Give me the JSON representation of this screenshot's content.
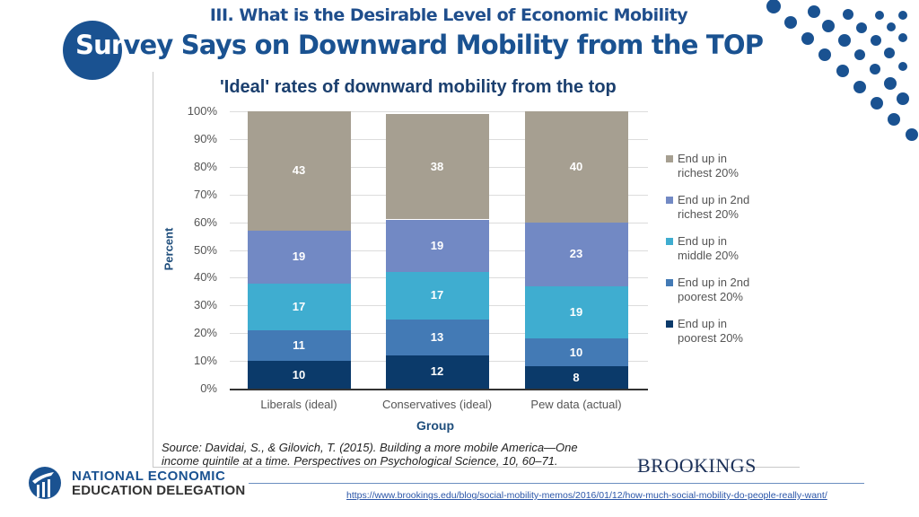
{
  "header": {
    "section_title": "III. What is the Desirable Level of Economic Mobility",
    "main_title_highlight": "Sur",
    "main_title_rest": "vey Says on Downward Mobility from the TOP"
  },
  "chart_data": {
    "type": "bar",
    "stacked": true,
    "title": "'Ideal' rates of downward mobility from the top",
    "xlabel": "Group",
    "ylabel": "Percent",
    "ylim": [
      0,
      100
    ],
    "yticks": [
      "0%",
      "10%",
      "20%",
      "30%",
      "40%",
      "50%",
      "60%",
      "70%",
      "80%",
      "90%",
      "100%"
    ],
    "categories": [
      "Liberals (ideal)",
      "Conservatives (ideal)",
      "Pew data (actual)"
    ],
    "legend_position": "right",
    "series": [
      {
        "name": "End up in poorest 20%",
        "label_lines": [
          "End up in",
          "poorest 20%"
        ],
        "color": "#0b3a6a",
        "values": [
          10,
          12,
          8
        ]
      },
      {
        "name": "End up in 2nd poorest 20%",
        "label_lines": [
          "End up in 2nd",
          "poorest 20%"
        ],
        "color": "#437ab5",
        "values": [
          11,
          13,
          10
        ]
      },
      {
        "name": "End up in middle 20%",
        "label_lines": [
          "End up in",
          "middle 20%"
        ],
        "color": "#3fadd0",
        "values": [
          17,
          17,
          19
        ]
      },
      {
        "name": "End up in 2nd richest 20%",
        "label_lines": [
          "End up in 2nd",
          "richest 20%"
        ],
        "color": "#7289c4",
        "values": [
          19,
          19,
          23
        ]
      },
      {
        "name": "End up in richest 20%",
        "label_lines": [
          "End up in",
          "richest 20%"
        ],
        "color": "#a69f91",
        "values": [
          43,
          38,
          40
        ]
      }
    ]
  },
  "source": {
    "line1": "Source: Davidai, S., & Gilovich, T. (2015). Building a more mobile America—One",
    "line2": "income quintile at a time. Perspectives on Psychological Science, 10, 60–71."
  },
  "footer": {
    "org_line1": "NATIONAL ECONOMIC",
    "org_line2": "EDUCATION DELEGATION",
    "brookings": "BROOKINGS",
    "url": "https://www.brookings.edu/blog/social-mobility-memos/2016/01/12/how-much-social-mobility-do-people-really-want/"
  },
  "colors": {
    "brand_blue": "#1a5291"
  }
}
